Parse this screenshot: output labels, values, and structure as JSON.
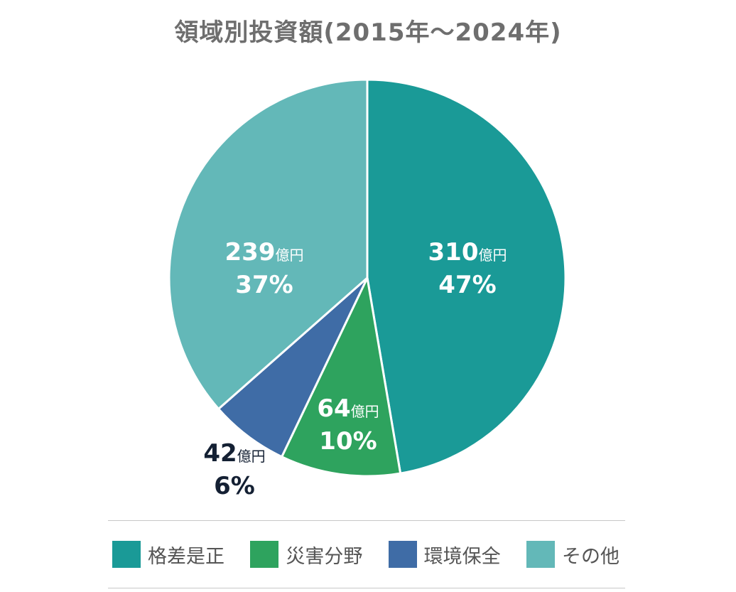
{
  "chart_data": {
    "type": "pie",
    "title": "領域別投資額(2015年～2024年)",
    "unit": "億円",
    "slices": [
      {
        "name": "格差是正",
        "value": 310,
        "percent": "47%",
        "value_label": "310",
        "unit_label": "億円",
        "color": "#1a9a97",
        "label_color": "#ffffff"
      },
      {
        "name": "災害分野",
        "value": 64,
        "percent": "10%",
        "value_label": "64",
        "unit_label": "億円",
        "color": "#2ea35e",
        "label_color": "#ffffff"
      },
      {
        "name": "環境保全",
        "value": 42,
        "percent": "6%",
        "value_label": "42",
        "unit_label": "億円",
        "color": "#3f6ca6",
        "label_color": "#142033"
      },
      {
        "name": "その他",
        "value": 239,
        "percent": "37%",
        "value_label": "239",
        "unit_label": "億円",
        "color": "#63b8b8",
        "label_color": "#ffffff"
      }
    ],
    "legend_position": "bottom"
  }
}
